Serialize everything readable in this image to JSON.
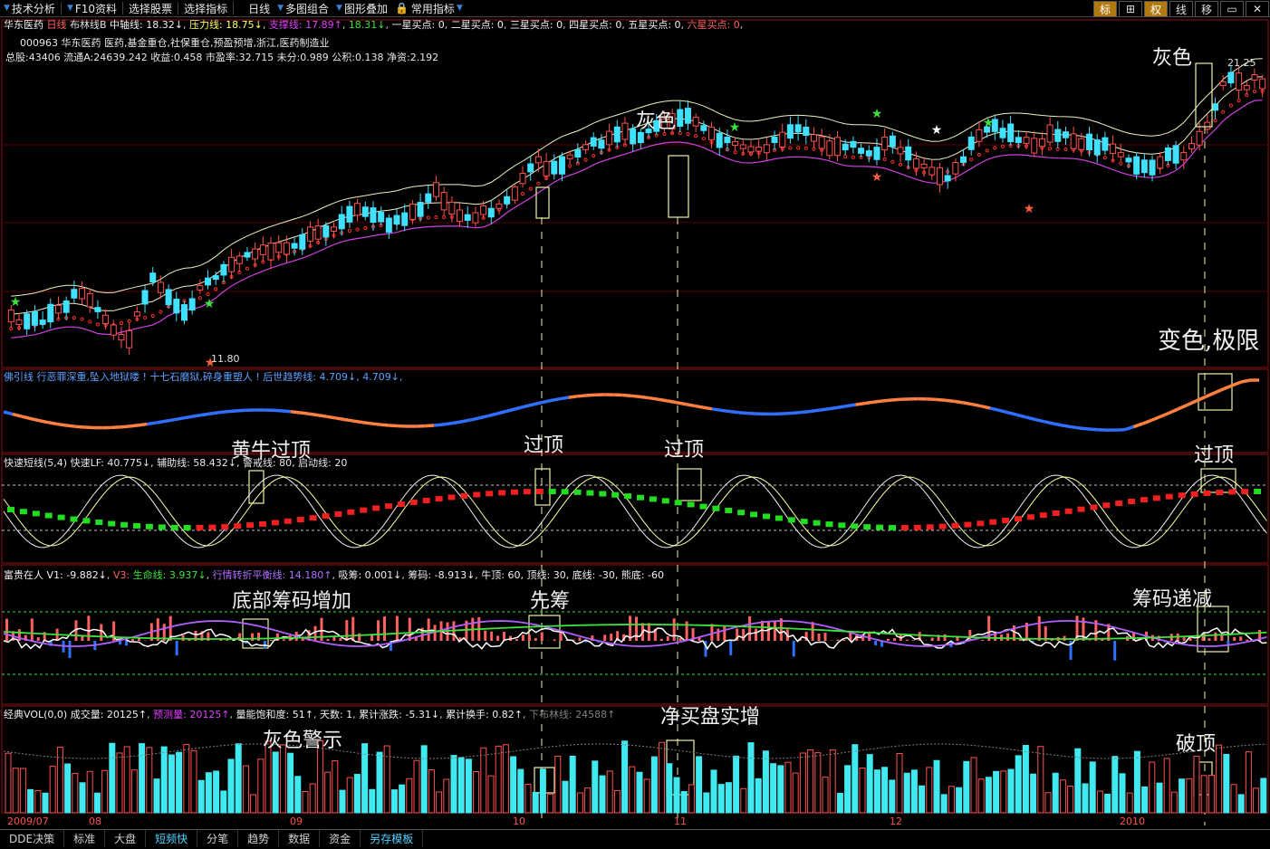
{
  "toolbar": {
    "buttons": [
      "技术分析",
      "F10资料",
      "选择股票",
      "选择指标",
      "日线",
      "多图组合",
      "图形叠加",
      "常用指标"
    ],
    "right_buttons": [
      "标",
      "权",
      "线",
      "移"
    ]
  },
  "main_panel": {
    "header_name": "华东医药",
    "header_period": "日线",
    "indicator": "布林线B",
    "mid_line": "中轴线: 18.32↓",
    "pressure_line": "压力线: 18.75↓",
    "support_line": "支撑线: 17.89↑",
    "support_val2": "18.31↓",
    "star1": "一星买点: 0",
    "star2": "二星买点: 0",
    "star3": "三星买点: 0",
    "star4": "四星买点: 0",
    "star5": "五星买点: 0",
    "star6": "六星买点: 0",
    "info_line1": "000963 华东医药  医药,基金重仓,社保重仓,预盈预增,浙江,医药制造业",
    "info_line2": "总股:43406  流通A:24639.242  收益:0.458  市盈率:32.715  未分:0.989  公积:0.138  净资:2.192",
    "low_label": "11.80",
    "high_label": "21.25"
  },
  "panel2": {
    "text": "佛引线 行恶罪深重,坠入地狱喽 ! 十七石磨狱,碎身重塑人 ! 后世趋势线: 4.709↓, 4.709↓,"
  },
  "panel3": {
    "text": "快速短线(5,4) 快速LF: 40.775↓, 辅助线: 58.432↓, 警戒线: 80, 启动线: 20"
  },
  "panel4": {
    "label": "富贵在人",
    "v1": "V1: -9.882↓",
    "v3": "V3:",
    "life": "生命线: 3.937↓",
    "balance": "行情转折平衡线: 14.180↑",
    "absorb": "吸筹: 0.001↓",
    "chips": "筹码: -8.913↓",
    "top": "牛顶: 60, 顶线: 30, 底线: -30, 熊底: -60"
  },
  "panel5": {
    "label": "经典VOL(0,0)",
    "volume": "成交量: 20125↑",
    "forecast": "预测量: 20125↑",
    "saturation": "量能饱和度: 51↑",
    "days": "天数: 1",
    "cum_change": "累计涨跌: -5.31↓",
    "cum_turnover": "累计换手: 0.82↑",
    "bollinger": "下布林线: 24588↑"
  },
  "date_axis": [
    "2009/07",
    "08",
    "09",
    "10",
    "11",
    "12",
    "2010"
  ],
  "annotations": {
    "a1": "灰色",
    "a2": "灰色",
    "a3": "变色,极限",
    "a4": "黄牛过顶",
    "a5": "过顶",
    "a6": "过顶",
    "a7": "过顶",
    "a8": "底部筹码增加",
    "a9": "先筹",
    "a10": "筹码递减",
    "a11": "灰色警示",
    "a12": "净买盘实增",
    "a13": "破顶"
  },
  "bottom_tabs": [
    "DDE决策",
    "标准",
    "大盘",
    "短频快",
    "分笔",
    "趋势",
    "数据",
    "资金",
    "另存模板"
  ],
  "colors": {
    "up": "#ff5050",
    "down": "#00e0ff",
    "yellow": "#ffff60",
    "magenta": "#e040ff",
    "green": "#3ce33c",
    "white": "#ffffff"
  }
}
